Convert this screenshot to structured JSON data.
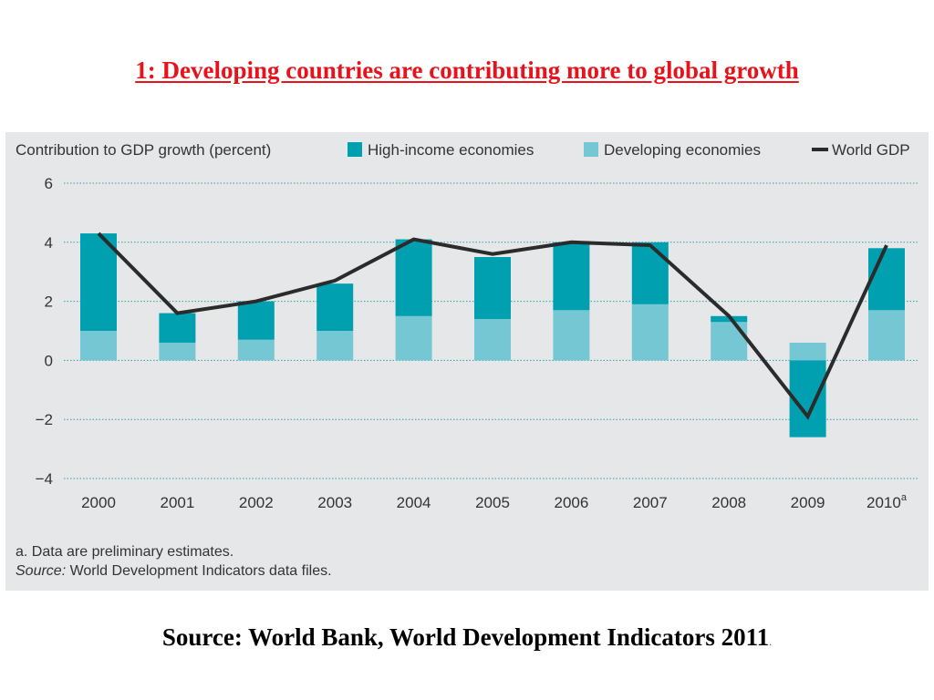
{
  "slide": {
    "title": "1: Developing countries are contributing more to global growth",
    "source": "Source: World Bank, World Development Indicators 2011",
    "source_suffix": "."
  },
  "notes": {
    "note_a": "a. Data are preliminary estimates.",
    "source_prefix": "Source:",
    "source_text": " World Development Indicators data files."
  },
  "chart_data": {
    "type": "bar",
    "stacked": true,
    "title": "",
    "ylabel": "Contribution to GDP growth (percent)",
    "xlabel": "",
    "ylim": [
      -4,
      6
    ],
    "yticks": [
      6,
      4,
      2,
      0,
      -2,
      -4
    ],
    "ytick_labels": [
      "6",
      "4",
      "2",
      "0",
      "−2",
      "−4"
    ],
    "grid": true,
    "legend_position": "top",
    "categories": [
      "2000",
      "2001",
      "2002",
      "2003",
      "2004",
      "2005",
      "2006",
      "2007",
      "2008",
      "2009",
      "2010"
    ],
    "category_superscripts": [
      "",
      "",
      "",
      "",
      "",
      "",
      "",
      "",
      "",
      "",
      "a"
    ],
    "series": [
      {
        "name": "High-income economies",
        "kind": "bar",
        "color": "#00a0b0",
        "values": [
          3.3,
          1.0,
          1.3,
          1.6,
          2.6,
          2.1,
          2.3,
          2.1,
          0.2,
          -2.6,
          2.1
        ]
      },
      {
        "name": "Developing economies",
        "kind": "bar",
        "color": "#74c7d3",
        "values": [
          1.0,
          0.6,
          0.7,
          1.0,
          1.5,
          1.4,
          1.7,
          1.9,
          1.3,
          0.6,
          1.7
        ]
      },
      {
        "name": "World GDP",
        "kind": "line",
        "color": "#2b2b2b",
        "values": [
          4.3,
          1.6,
          2.0,
          2.7,
          4.1,
          3.6,
          4.0,
          3.9,
          1.5,
          -1.9,
          3.9
        ]
      }
    ]
  }
}
